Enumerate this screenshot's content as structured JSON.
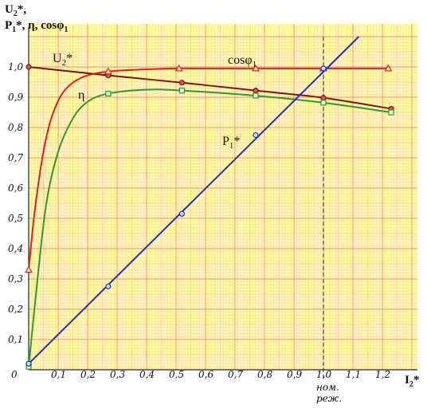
{
  "chart_data": {
    "type": "line",
    "y_axis_label_line1": "U",
    "y_axis_label_line1_sub": "2",
    "y_axis_label_line1_tail": "*,",
    "y_axis_label_line2_a": "P",
    "y_axis_label_line2_a_sub": "1",
    "y_axis_label_line2_tail": "*, η, cosφ",
    "y_axis_label_line2_sub": "1",
    "x_axis_label": "I",
    "x_axis_label_sub": "2",
    "x_axis_label_tail": "*",
    "origin_label": "0",
    "x_ticks": [
      "0,1",
      "0,2",
      "0,3",
      "0,4",
      "0,5",
      "0,6",
      "0,7",
      "0,8",
      "0,9",
      "1,0",
      "1,1",
      "1,2"
    ],
    "y_ticks": [
      "0,1",
      "0,2",
      "0,3",
      "0,4",
      "0,5",
      "0,6",
      "0,7",
      "0,8",
      "0,9",
      "1,0"
    ],
    "xlim": [
      0,
      1.3
    ],
    "ylim": [
      0,
      1.1
    ],
    "annotation_line1": "ном.",
    "annotation_line2": "реж.",
    "nominal_x": 1.0,
    "series": [
      {
        "name": "U2*",
        "label_main": "U",
        "label_sub": "2",
        "label_tail": "*",
        "color": "#7a1414",
        "marker": "circle",
        "points": [
          [
            0,
            1.0
          ],
          [
            0.27,
            0.972
          ],
          [
            0.52,
            0.948
          ],
          [
            0.77,
            0.922
          ],
          [
            1.0,
            0.898
          ],
          [
            1.23,
            0.862
          ]
        ]
      },
      {
        "name": "cosφ1",
        "label_main": "cosφ",
        "label_sub": "1",
        "label_tail": "",
        "color": "#e02020",
        "marker": "triangle",
        "points": [
          [
            0,
            0.33
          ],
          [
            0.02,
            0.52
          ],
          [
            0.05,
            0.72
          ],
          [
            0.08,
            0.84
          ],
          [
            0.12,
            0.92
          ],
          [
            0.18,
            0.965
          ],
          [
            0.27,
            0.985
          ],
          [
            0.4,
            0.992
          ],
          [
            0.51,
            0.995
          ],
          [
            0.77,
            0.995
          ],
          [
            1.0,
            0.995
          ],
          [
            1.22,
            0.995
          ]
        ],
        "marker_points": [
          [
            0,
            0.33
          ],
          [
            0.27,
            0.985
          ],
          [
            0.51,
            0.995
          ],
          [
            0.77,
            0.995
          ],
          [
            1.0,
            0.995
          ],
          [
            1.22,
            0.995
          ]
        ]
      },
      {
        "name": "η",
        "label_main": "η",
        "label_sub": "",
        "label_tail": "",
        "color": "#2e9a2e",
        "marker": "square",
        "points": [
          [
            0,
            0.01
          ],
          [
            0.03,
            0.3
          ],
          [
            0.06,
            0.55
          ],
          [
            0.1,
            0.72
          ],
          [
            0.15,
            0.83
          ],
          [
            0.2,
            0.885
          ],
          [
            0.27,
            0.912
          ],
          [
            0.4,
            0.925
          ],
          [
            0.52,
            0.922
          ],
          [
            0.77,
            0.905
          ],
          [
            1.0,
            0.882
          ],
          [
            1.23,
            0.85
          ]
        ],
        "marker_points": [
          [
            0,
            0.01
          ],
          [
            0.27,
            0.912
          ],
          [
            0.52,
            0.922
          ],
          [
            0.77,
            0.905
          ],
          [
            1.0,
            0.882
          ],
          [
            1.23,
            0.85
          ]
        ]
      },
      {
        "name": "P1*",
        "label_main": "P",
        "label_sub": "1",
        "label_tail": "*",
        "color": "#1f2fbf",
        "marker": "circle-open",
        "points": [
          [
            0,
            0.02
          ],
          [
            1.12,
            1.1
          ]
        ],
        "marker_points": [
          [
            0,
            0.02
          ],
          [
            0.27,
            0.275
          ],
          [
            0.52,
            0.515
          ],
          [
            0.77,
            0.775
          ],
          [
            1.0,
            0.995
          ]
        ]
      }
    ]
  }
}
